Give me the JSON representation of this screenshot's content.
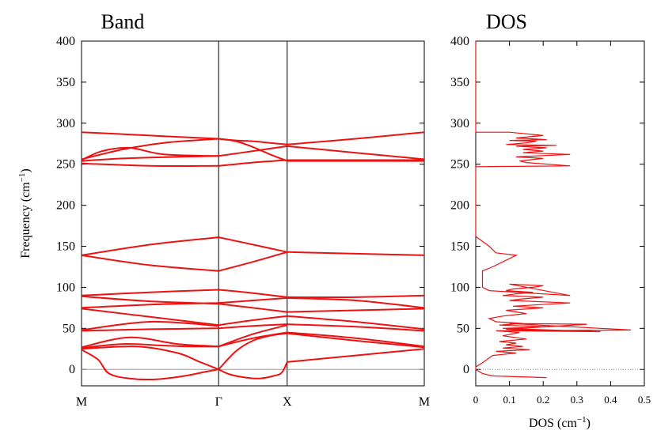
{
  "chart_data": [
    {
      "type": "line",
      "title": "Band",
      "ylabel": "Frequency (cm",
      "ylabel_sup": "−1",
      "ylabel_end": ")",
      "ylim": [
        -20,
        400
      ],
      "yticks": [
        0,
        50,
        100,
        150,
        200,
        250,
        300,
        350,
        400
      ],
      "xticks": [
        "M",
        "Γ",
        "X",
        "M"
      ],
      "xtick_positions": [
        0,
        1,
        1.5,
        2.5
      ],
      "xlim": [
        0,
        2.5
      ],
      "zero_line": true,
      "series": [
        {
          "x": [
            0,
            0.25,
            0.5,
            0.75,
            1
          ],
          "y": [
            289,
            287,
            285,
            283,
            281
          ]
        },
        {
          "x": [
            0,
            0.3,
            0.6,
            1
          ],
          "y": [
            256,
            268,
            276,
            281
          ]
        },
        {
          "x": [
            0,
            0.15,
            0.35,
            0.6,
            1
          ],
          "y": [
            255,
            266,
            270,
            262,
            260
          ]
        },
        {
          "x": [
            0,
            0.3,
            0.7,
            1
          ],
          "y": [
            254,
            257,
            259,
            260
          ]
        },
        {
          "x": [
            0,
            0.5,
            1
          ],
          "y": [
            251,
            248,
            248
          ]
        },
        {
          "x": [
            0,
            0.5,
            1
          ],
          "y": [
            139,
            152,
            161
          ]
        },
        {
          "x": [
            0,
            0.5,
            1
          ],
          "y": [
            139,
            127,
            120
          ]
        },
        {
          "x": [
            0,
            0.5,
            1
          ],
          "y": [
            90,
            94,
            97
          ]
        },
        {
          "x": [
            0,
            0.5,
            1
          ],
          "y": [
            89,
            83,
            80
          ]
        },
        {
          "x": [
            0,
            0.5,
            1
          ],
          "y": [
            75,
            79,
            81
          ]
        },
        {
          "x": [
            0,
            0.5,
            1
          ],
          "y": [
            74,
            64,
            54
          ]
        },
        {
          "x": [
            0,
            0.5,
            1
          ],
          "y": [
            48,
            58,
            53
          ]
        },
        {
          "x": [
            0,
            0.5,
            1
          ],
          "y": [
            47,
            49,
            50
          ]
        },
        {
          "x": [
            0,
            0.35,
            0.7,
            1
          ],
          "y": [
            27,
            39,
            31,
            28
          ]
        },
        {
          "x": [
            0,
            0.3,
            0.6,
            0.8,
            1
          ],
          "y": [
            26,
            31,
            29,
            28,
            28
          ]
        },
        {
          "x": [
            0,
            0.4,
            0.7,
            0.85,
            1
          ],
          "y": [
            25,
            28,
            20,
            10,
            0
          ]
        },
        {
          "x": [
            0,
            0.12,
            0.2,
            0.35,
            0.55,
            0.75,
            0.9,
            1
          ],
          "y": [
            24,
            12,
            -5,
            -11,
            -12,
            -8,
            -3,
            0
          ]
        },
        {
          "x": [
            1,
            1.125,
            1.25,
            1.375,
            1.5
          ],
          "y": [
            281,
            279,
            278,
            276,
            274
          ]
        },
        {
          "x": [
            1,
            1.125,
            1.25,
            1.375,
            1.5
          ],
          "y": [
            281,
            278,
            271,
            262,
            254
          ]
        },
        {
          "x": [
            1,
            1.25,
            1.5
          ],
          "y": [
            260,
            266,
            272
          ]
        },
        {
          "x": [
            1,
            1.25,
            1.5
          ],
          "y": [
            248,
            252,
            255
          ]
        },
        {
          "x": [
            1,
            1.25,
            1.5
          ],
          "y": [
            161,
            152,
            143
          ]
        },
        {
          "x": [
            1,
            1.25,
            1.5
          ],
          "y": [
            120,
            131,
            143
          ]
        },
        {
          "x": [
            1,
            1.25,
            1.5
          ],
          "y": [
            97,
            93,
            88
          ]
        },
        {
          "x": [
            1,
            1.25,
            1.5
          ],
          "y": [
            81,
            84,
            87
          ]
        },
        {
          "x": [
            1,
            1.25,
            1.5
          ],
          "y": [
            80,
            75,
            70
          ]
        },
        {
          "x": [
            1,
            1.25,
            1.5
          ],
          "y": [
            54,
            60,
            65
          ]
        },
        {
          "x": [
            1,
            1.25,
            1.5
          ],
          "y": [
            50,
            53,
            55
          ]
        },
        {
          "x": [
            1,
            1.25,
            1.5
          ],
          "y": [
            28,
            43,
            54
          ]
        },
        {
          "x": [
            1,
            1.25,
            1.5
          ],
          "y": [
            28,
            38,
            45
          ]
        },
        {
          "x": [
            1,
            1.125,
            1.25,
            1.375,
            1.5
          ],
          "y": [
            0,
            22,
            35,
            41,
            44
          ]
        },
        {
          "x": [
            1,
            1.08,
            1.2,
            1.3,
            1.4,
            1.46,
            1.5
          ],
          "y": [
            0,
            -6,
            -10,
            -11,
            -8,
            -4,
            9
          ]
        },
        {
          "x": [
            1.5,
            2.0,
            2.5
          ],
          "y": [
            274,
            281,
            289
          ]
        },
        {
          "x": [
            1.5,
            2.0,
            2.5
          ],
          "y": [
            272,
            264,
            256
          ]
        },
        {
          "x": [
            1.5,
            2.0,
            2.5
          ],
          "y": [
            255,
            255,
            255
          ]
        },
        {
          "x": [
            1.5,
            2.0,
            2.5
          ],
          "y": [
            254,
            254,
            254
          ]
        },
        {
          "x": [
            1.5,
            2.0,
            2.5
          ],
          "y": [
            143,
            141,
            139
          ]
        },
        {
          "x": [
            1.5,
            2.0,
            2.5
          ],
          "y": [
            88,
            88,
            90
          ]
        },
        {
          "x": [
            1.5,
            2.0,
            2.5
          ],
          "y": [
            87,
            84,
            75
          ]
        },
        {
          "x": [
            1.5,
            2.0,
            2.5
          ],
          "y": [
            70,
            72,
            74
          ]
        },
        {
          "x": [
            1.5,
            2.0,
            2.5
          ],
          "y": [
            65,
            58,
            49
          ]
        },
        {
          "x": [
            1.5,
            2.0,
            2.5
          ],
          "y": [
            55,
            52,
            47
          ]
        },
        {
          "x": [
            1.5,
            2.0,
            2.5
          ],
          "y": [
            45,
            38,
            28
          ]
        },
        {
          "x": [
            1.5,
            2.0,
            2.5
          ],
          "y": [
            44,
            35,
            27
          ]
        },
        {
          "x": [
            1.5,
            2.0,
            2.5
          ],
          "y": [
            9,
            17,
            25
          ]
        }
      ]
    },
    {
      "type": "line",
      "title": "DOS",
      "xlabel": "DOS (cm",
      "xlabel_sup": "−1",
      "xlabel_end": ")",
      "xlim": [
        0,
        0.5
      ],
      "xticks": [
        0,
        0.1,
        0.2,
        0.3,
        0.4,
        0.5
      ],
      "xtick_labels": [
        "0",
        "0.1",
        "0.2",
        "0.3",
        "0.4",
        "0.5"
      ],
      "ylim": [
        -20,
        400
      ],
      "yticks": [
        0,
        50,
        100,
        150,
        200,
        250,
        300,
        350,
        400
      ],
      "zero_line_dotted": true,
      "series": [
        {
          "x": [
            0.21,
            0.05,
            0.02,
            0.0,
            0.0,
            0.02,
            0.04,
            0.05,
            0.12,
            0.06,
            0.16,
            0.08,
            0.14,
            0.09,
            0.12,
            0.07,
            0.15,
            0.08,
            0.13,
            0.06,
            0.2,
            0.09,
            0.33,
            0.1,
            0.46,
            0.1,
            0.37,
            0.08,
            0.22,
            0.07,
            0.14,
            0.06,
            0.04,
            0.08,
            0.15,
            0.09,
            0.2,
            0.11,
            0.28,
            0.1,
            0.14,
            0.2,
            0.08,
            0.12,
            0.17,
            0.09,
            0.11,
            0.17,
            0.2,
            0.1,
            0.28,
            0.04,
            0.02,
            0.02,
            0.05,
            0.12,
            0.06,
            0.04,
            0.0,
            0.0,
            0.0,
            0.28,
            0.15,
            0.13,
            0.2,
            0.12,
            0.28,
            0.14,
            0.2,
            0.14,
            0.21,
            0.12,
            0.24,
            0.09,
            0.15,
            0.18,
            0.1,
            0.21,
            0.12,
            0.2,
            0.1,
            0.0,
            0.0
          ],
          "y": [
            -10,
            -8,
            -5,
            0,
            3,
            8,
            14,
            17,
            20,
            22,
            24,
            26,
            28,
            30,
            32,
            34,
            37,
            41,
            45,
            47,
            48,
            49,
            55,
            56,
            48,
            47,
            46,
            50,
            52,
            54,
            56,
            58,
            62,
            65,
            68,
            72,
            75,
            77,
            81,
            84,
            86,
            88,
            90,
            92,
            94,
            96,
            98,
            100,
            102,
            104,
            90,
            96,
            100,
            120,
            125,
            139,
            142,
            150,
            162,
            162,
            247,
            248,
            252,
            254,
            257,
            259,
            262,
            264,
            266,
            268,
            270,
            272,
            273,
            274,
            276,
            278,
            279,
            280,
            282,
            285,
            289,
            289,
            400
          ]
        }
      ]
    }
  ]
}
